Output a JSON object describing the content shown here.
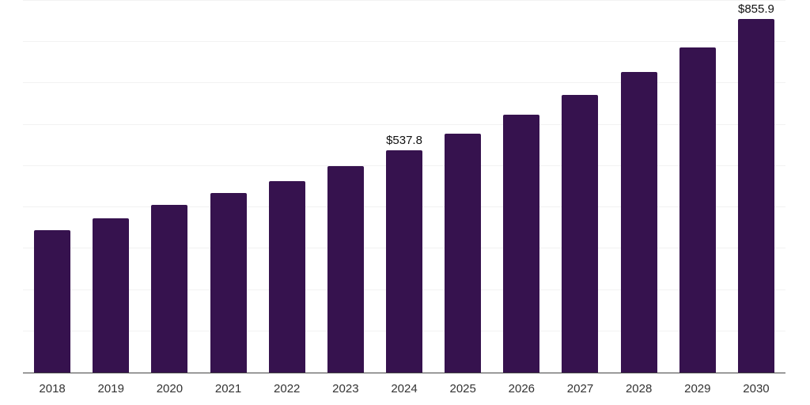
{
  "chart_data": {
    "type": "bar",
    "title": "",
    "xlabel": "",
    "ylabel": "",
    "categories": [
      "2018",
      "2019",
      "2020",
      "2021",
      "2022",
      "2023",
      "2024",
      "2025",
      "2026",
      "2027",
      "2028",
      "2029",
      "2030"
    ],
    "values": [
      345.1,
      372.6,
      406.0,
      434.8,
      464.1,
      500.0,
      537.8,
      578.6,
      623.9,
      672.6,
      727.5,
      787.7,
      855.9
    ],
    "value_labels": {
      "2024": "$537.8",
      "2030": "$855.9"
    },
    "ylim": [
      0,
      900
    ],
    "grid": {
      "horizontal": true,
      "step": 100,
      "vertical": false
    },
    "legend": "none",
    "colors": {
      "bar": "#36124E",
      "axis_line": "#444444",
      "gridline": "#f2f2f2",
      "tick_label": "#333333",
      "value_label": "#111111",
      "background": "#ffffff"
    }
  }
}
